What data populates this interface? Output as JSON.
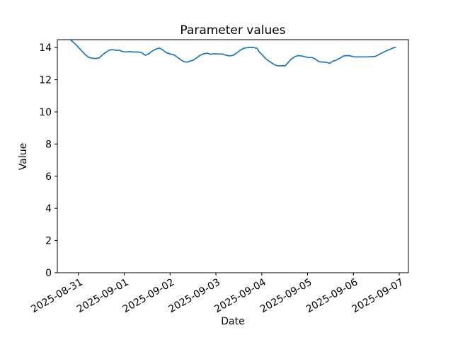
{
  "figure": {
    "background": "#ffffff"
  },
  "chart_data": {
    "type": "line",
    "title": "Parameter values",
    "xlabel": "Date",
    "ylabel": "Value",
    "legend": null,
    "grid": false,
    "line_color": "#1f77b4",
    "spine_color": "#000000",
    "x_tick_labels": [
      "2025-08-31",
      "2025-09-01",
      "2025-09-02",
      "2025-09-03",
      "2025-09-04",
      "2025-09-05",
      "2025-09-06",
      "2025-09-07"
    ],
    "x_tick_rotation_deg": 30,
    "y_ticks": [
      0,
      2,
      4,
      6,
      8,
      10,
      12,
      14
    ],
    "ylim": [
      0,
      14.49
    ],
    "xlim_days": [
      -0.46,
      7.2
    ],
    "series": [
      {
        "name": "Parameter values",
        "x_days": [
          -0.26,
          -0.18,
          -0.09,
          -0.01,
          0.07,
          0.14,
          0.22,
          0.3,
          0.38,
          0.45,
          0.5,
          0.56,
          0.64,
          0.69,
          0.76,
          0.83,
          0.89,
          0.96,
          1.04,
          1.12,
          1.2,
          1.3,
          1.38,
          1.46,
          1.54,
          1.61,
          1.69,
          1.77,
          1.84,
          1.92,
          2.0,
          2.08,
          2.15,
          2.23,
          2.3,
          2.38,
          2.43,
          2.51,
          2.59,
          2.66,
          2.74,
          2.82,
          2.88,
          2.97,
          3.05,
          3.14,
          3.22,
          3.3,
          3.38,
          3.46,
          3.55,
          3.63,
          3.7,
          3.82,
          3.9,
          3.94,
          4.02,
          4.09,
          4.16,
          4.24,
          4.3,
          4.38,
          4.45,
          4.51,
          4.56,
          4.63,
          4.71,
          4.79,
          4.87,
          4.94,
          5.02,
          5.1,
          5.17,
          5.25,
          5.33,
          5.41,
          5.48,
          5.55,
          5.63,
          5.71,
          5.79,
          5.87,
          5.94,
          6.02,
          6.15,
          6.3,
          6.48,
          6.56,
          6.64,
          6.71,
          6.79,
          6.87,
          6.93
        ],
        "y": [
          14.85,
          14.49,
          14.28,
          14.05,
          13.8,
          13.58,
          13.4,
          13.33,
          13.32,
          13.35,
          13.48,
          13.63,
          13.78,
          13.85,
          13.87,
          13.82,
          13.84,
          13.75,
          13.73,
          13.75,
          13.72,
          13.73,
          13.68,
          13.52,
          13.62,
          13.78,
          13.9,
          13.97,
          13.85,
          13.68,
          13.6,
          13.55,
          13.42,
          13.25,
          13.12,
          13.1,
          13.15,
          13.22,
          13.38,
          13.52,
          13.62,
          13.65,
          13.58,
          13.62,
          13.6,
          13.6,
          13.52,
          13.48,
          13.52,
          13.68,
          13.87,
          13.97,
          14.0,
          14.0,
          13.95,
          13.75,
          13.52,
          13.3,
          13.15,
          13.0,
          12.9,
          12.85,
          12.88,
          12.86,
          13.02,
          13.25,
          13.42,
          13.5,
          13.48,
          13.43,
          13.38,
          13.38,
          13.28,
          13.12,
          13.1,
          13.08,
          13.02,
          13.15,
          13.22,
          13.35,
          13.48,
          13.5,
          13.48,
          13.42,
          13.42,
          13.42,
          13.45,
          13.57,
          13.68,
          13.79,
          13.88,
          13.98,
          14.03
        ]
      }
    ]
  }
}
